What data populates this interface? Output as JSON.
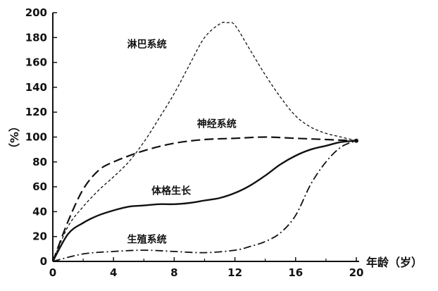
{
  "chart_data": {
    "type": "line",
    "xlabel": "年龄（岁）",
    "ylabel": "（%）",
    "xlim": [
      0,
      20
    ],
    "ylim": [
      0,
      200
    ],
    "x_ticks": [
      "0",
      "4",
      "8",
      "12",
      "16",
      "20"
    ],
    "y_ticks": [
      "0",
      "20",
      "40",
      "60",
      "80",
      "100",
      "120",
      "140",
      "160",
      "180",
      "200"
    ],
    "grid": false,
    "legend": "none",
    "series": [
      {
        "name": "淋巴系统",
        "style": "short-dash",
        "x": [
          0,
          1,
          2,
          3,
          4,
          5,
          6,
          7,
          8,
          9,
          10,
          11,
          11.5,
          12,
          13,
          14,
          15,
          16,
          17,
          18,
          19,
          20
        ],
        "y": [
          0,
          28,
          44,
          57,
          68,
          80,
          96,
          115,
          135,
          158,
          180,
          191,
          192,
          190,
          170,
          150,
          132,
          117,
          108,
          103,
          100,
          97
        ]
      },
      {
        "name": "神经系统",
        "style": "long-dash",
        "x": [
          0,
          1,
          2,
          3,
          4,
          6,
          8,
          10,
          12,
          14,
          16,
          18,
          20
        ],
        "y": [
          0,
          32,
          58,
          73,
          80,
          89,
          95,
          98,
          99,
          100,
          99,
          98,
          97
        ]
      },
      {
        "name": "体格生长",
        "style": "solid",
        "x": [
          0,
          1,
          2,
          3,
          4,
          5,
          6,
          7,
          8,
          9,
          10,
          11,
          12,
          13,
          14,
          15,
          16,
          17,
          18,
          19,
          20
        ],
        "y": [
          0,
          22,
          31,
          37,
          41,
          44,
          45,
          46,
          46,
          47,
          49,
          51,
          55,
          61,
          69,
          78,
          85,
          90,
          93,
          96,
          97
        ]
      },
      {
        "name": "生殖系统",
        "style": "dash-dot",
        "x": [
          0,
          2,
          4,
          6,
          8,
          10,
          12,
          13,
          14,
          15,
          16,
          17,
          18,
          19,
          20
        ],
        "y": [
          0,
          6,
          8,
          9,
          8,
          7,
          9,
          12,
          16,
          23,
          37,
          62,
          80,
          92,
          97
        ]
      }
    ],
    "series_label_anchors": [
      {
        "name": "淋巴系统",
        "x": 6.2,
        "y": 172
      },
      {
        "name": "神经系统",
        "x": 10.8,
        "y": 108
      },
      {
        "name": "体格生长",
        "x": 7.8,
        "y": 54
      },
      {
        "name": "生殖系统",
        "x": 6.2,
        "y": 15
      }
    ]
  }
}
